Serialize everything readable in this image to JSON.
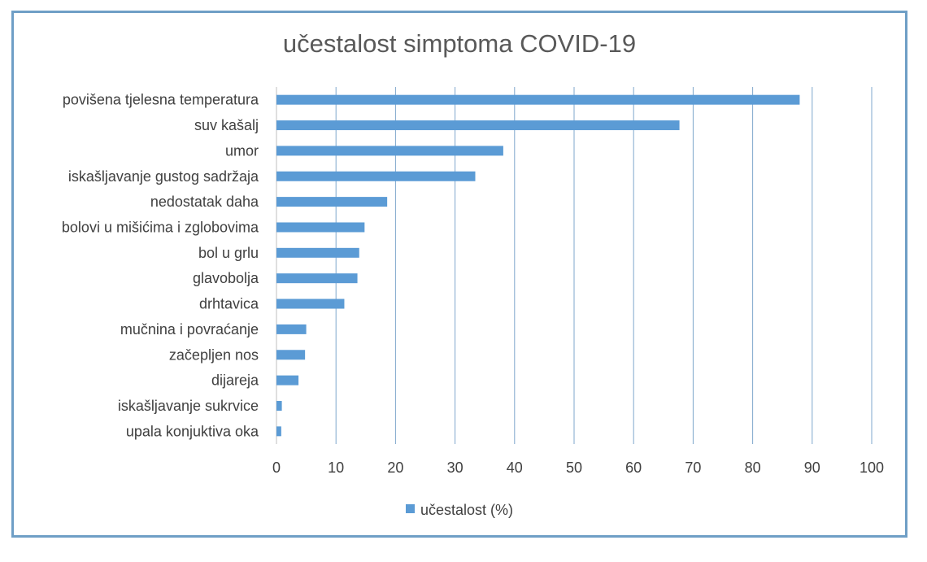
{
  "chart_data": {
    "type": "bar",
    "orientation": "horizontal",
    "title": "učestalost simptoma COVID-19",
    "xlabel": "",
    "ylabel": "",
    "categories": [
      "povišena tjelesna temperatura",
      "suv kašalj",
      "umor",
      "iskašljavanje gustog sadržaja",
      "nedostatak daha",
      "bolovi u mišićima i zglobovima",
      "bol u grlu",
      "glavobolja",
      "drhtavica",
      "mučnina i povraćanje",
      "začepljen nos",
      "dijareja",
      "iskašljavanje sukrvice",
      "upala konjuktiva oka"
    ],
    "series": [
      {
        "name": "učestalost (%)",
        "color": "#5b9bd5",
        "values": [
          87.9,
          67.7,
          38.1,
          33.4,
          18.6,
          14.8,
          13.9,
          13.6,
          11.4,
          5.0,
          4.8,
          3.7,
          0.9,
          0.8
        ]
      }
    ],
    "xlim": [
      0,
      100
    ],
    "xticks": [
      0,
      10,
      20,
      30,
      40,
      50,
      60,
      70,
      80,
      90,
      100
    ],
    "grid": "vertical",
    "legend": "bottom"
  }
}
